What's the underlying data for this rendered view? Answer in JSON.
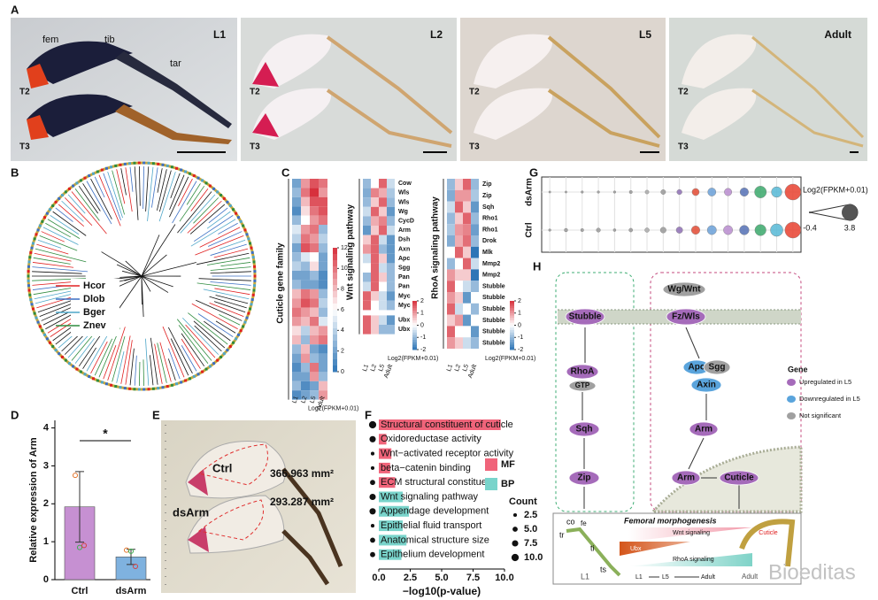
{
  "panel_labels": [
    "A",
    "B",
    "C",
    "D",
    "E",
    "F",
    "G",
    "H"
  ],
  "panel_a": {
    "stages": [
      "L1",
      "L2",
      "L5",
      "Adult"
    ],
    "segments": [
      "fem",
      "tib",
      "tar"
    ],
    "legs": [
      "T2",
      "T3"
    ]
  },
  "panel_b": {
    "legend": [
      {
        "name": "Hcor",
        "color": "#e02020"
      },
      {
        "name": "Dlob",
        "color": "#3b6fc4"
      },
      {
        "name": "Bger",
        "color": "#4fa7c9"
      },
      {
        "name": "Znev",
        "color": "#2e8b3e"
      }
    ]
  },
  "panel_c": {
    "heatmaps": [
      {
        "title": "Cuticle gene family",
        "columns": [
          "L1",
          "L2",
          "L5",
          "Adult"
        ],
        "clim": [
          0,
          12
        ],
        "colorbar_ticks": [
          12,
          10,
          8,
          6,
          4,
          2,
          0
        ],
        "colorbar_label": "Log2(FPKM+0.01)",
        "values": [
          [
            2,
            9,
            11,
            10
          ],
          [
            3,
            10,
            12,
            9
          ],
          [
            2,
            8,
            11,
            11
          ],
          [
            1,
            7,
            10,
            11
          ],
          [
            3,
            6,
            9,
            10
          ],
          [
            5,
            9,
            10,
            3
          ],
          [
            4,
            10,
            9,
            4
          ],
          [
            2,
            11,
            10,
            3
          ],
          [
            3,
            5,
            6,
            2
          ],
          [
            4,
            3,
            7,
            2
          ],
          [
            2,
            2,
            3,
            1
          ],
          [
            3,
            2,
            2,
            1
          ],
          [
            8,
            10,
            9,
            3
          ],
          [
            9,
            11,
            10,
            4
          ],
          [
            10,
            9,
            8,
            3
          ],
          [
            9,
            8,
            10,
            5
          ],
          [
            7,
            4,
            8,
            9
          ],
          [
            8,
            3,
            9,
            10
          ],
          [
            3,
            8,
            2,
            1
          ],
          [
            2,
            9,
            3,
            2
          ],
          [
            1,
            3,
            10,
            2
          ],
          [
            2,
            2,
            9,
            3
          ],
          [
            3,
            1,
            2,
            8
          ],
          [
            1,
            2,
            3,
            9
          ]
        ]
      },
      {
        "title": "Wnt signaling pathway",
        "columns": [
          "L1",
          "L2",
          "L5",
          "Adult"
        ],
        "clim": [
          -2,
          2
        ],
        "colorbar_ticks": [
          2,
          1,
          0,
          -1,
          -2
        ],
        "colorbar_label": "Log2(FPKM+0.01)",
        "highlight": "Arm",
        "genes": [
          "Cow",
          "Wls",
          "Wls",
          "Wg",
          "CycD",
          "Arm",
          "Dsh",
          "Axn",
          "Apc",
          "Sgg",
          "Pan",
          "Pan",
          "Myc",
          "Myc",
          "Ubx",
          "Ubx"
        ],
        "values": [
          [
            -1,
            0,
            1.5,
            -0.5
          ],
          [
            -1.2,
            1.2,
            0.8,
            -0.8
          ],
          [
            -1,
            0.5,
            1.5,
            -1
          ],
          [
            -0.5,
            1.5,
            0.5,
            -1.5
          ],
          [
            -1,
            0.8,
            1.2,
            -1
          ],
          [
            -1.5,
            0.5,
            1.5,
            -0.5
          ],
          [
            0.5,
            1.5,
            -0.5,
            -1.5
          ],
          [
            1,
            1.5,
            -1,
            -1.5
          ],
          [
            -0.5,
            1.5,
            0.5,
            -1.5
          ],
          [
            0,
            1.5,
            -0.5,
            -1
          ],
          [
            -1,
            1.5,
            0.5,
            -1
          ],
          [
            -0.5,
            1.5,
            0,
            -1
          ],
          [
            1.5,
            0.5,
            -0.5,
            -1.5
          ],
          [
            1.5,
            0,
            -0.5,
            -1
          ],
          [
            1.5,
            0.5,
            -0.5,
            -1.5
          ],
          [
            1.5,
            0.5,
            -1,
            -1
          ]
        ]
      },
      {
        "title": "RhoA signaling pathway",
        "columns": [
          "L1",
          "L2",
          "L5",
          "Adult"
        ],
        "clim": [
          -2,
          2
        ],
        "colorbar_ticks": [
          2,
          1,
          0,
          -1,
          -2
        ],
        "colorbar_label": "Log2(FPKM+0.01)",
        "genes": [
          "Zip",
          "Zip",
          "Sqh",
          "Rho1",
          "Rho1",
          "Drok",
          "Mlk",
          "Mmp2",
          "Mmp2",
          "Stubble",
          "Stubble",
          "Stubble",
          "Stubble",
          "Stubble",
          "Stubble"
        ],
        "values": [
          [
            -1,
            0.5,
            1.5,
            -1
          ],
          [
            -1.2,
            1,
            1,
            -0.8
          ],
          [
            -0.5,
            1.5,
            0.5,
            -1.5
          ],
          [
            -1,
            0.5,
            1.5,
            -1
          ],
          [
            -0.8,
            1,
            1.2,
            -1.4
          ],
          [
            -1.2,
            0.8,
            1.4,
            -1
          ],
          [
            0,
            1.5,
            0.5,
            -2
          ],
          [
            -1,
            0,
            1.5,
            -0.5
          ],
          [
            1,
            0.5,
            0.5,
            -2
          ],
          [
            1.5,
            0,
            -0.5,
            -1
          ],
          [
            1,
            0.5,
            -1.5,
            0
          ],
          [
            1.5,
            -0.5,
            0,
            -1
          ],
          [
            0.5,
            1,
            -1.5,
            0
          ],
          [
            1.5,
            0,
            0,
            -1.5
          ],
          [
            1,
            0.5,
            -0.5,
            -1
          ]
        ]
      }
    ]
  },
  "panel_e": {
    "groups": [
      "Ctrl",
      "dsArm"
    ],
    "areas": [
      "366.963 mm²",
      "293.287 mm²"
    ]
  },
  "chart_data": [
    {
      "type": "bar",
      "ylabel": "Relative expression of Arm",
      "categories": [
        "Ctrl",
        "dsArm"
      ],
      "values": [
        1.92,
        0.6
      ],
      "errors": [
        0.93,
        0.2
      ],
      "points": [
        [
          2.75,
          0.85,
          0.9
        ],
        [
          0.78,
          0.75,
          0.35
        ]
      ],
      "colors": [
        "#c690d2",
        "#7fb2df"
      ],
      "annotation": "*",
      "ylim": [
        0,
        4.2
      ],
      "yticks": [
        0,
        1,
        2,
        3,
        4
      ]
    },
    {
      "type": "bar",
      "orientation": "horizontal",
      "xlabel": "−log10(p-value)",
      "categories": [
        "Structural constituent of cuticle",
        "Oxidoreductase activity",
        "Wnt−activated receptor activity",
        "beta−catenin binding",
        "ECM structural constituent",
        "Wnt signaling pathway",
        "Appendage development",
        "Epithelial fluid transport",
        "Anatomical structure size",
        "Epithelium development"
      ],
      "values": [
        9.7,
        0.6,
        1.0,
        0.9,
        1.3,
        1.9,
        2.4,
        1.9,
        2.2,
        1.8
      ],
      "counts": [
        10,
        7.5,
        2.5,
        2.5,
        5,
        7.5,
        7.5,
        2.5,
        5,
        5
      ],
      "groups": [
        "MF",
        "MF",
        "MF",
        "MF",
        "MF",
        "BP",
        "BP",
        "BP",
        "BP",
        "BP"
      ],
      "series": [
        {
          "name": "MF",
          "color": "#f0647a"
        },
        {
          "name": "BP",
          "color": "#79d4cb"
        }
      ],
      "size_legend": {
        "title": "Count",
        "values": [
          2.5,
          {
            "value": 5,
            "label": "5.0"
          },
          7.5,
          {
            "value": 10,
            "label": "10.0"
          }
        ]
      },
      "xlim": [
        0,
        10
      ],
      "xticks": [
        {
          "value": 0,
          "label": "0.0"
        },
        2.5,
        {
          "value": 5,
          "label": "5.0"
        },
        7.5,
        {
          "value": 10,
          "label": "10.0"
        }
      ]
    },
    {
      "type": "dot",
      "categories": [
        null,
        null,
        null,
        null,
        null,
        null,
        null,
        null,
        null,
        null,
        null,
        null,
        null,
        null,
        null,
        null
      ],
      "point_colors": [
        "#999999",
        "#999999",
        "#999999",
        "#999999",
        "#999999",
        "#999999",
        "#aaaaaa",
        "#999999",
        "#8e6fb5",
        "#e34a33",
        "#6aa0d8",
        "#b98ccf",
        "#5470b5",
        "#3aa86b",
        "#56b9d6",
        "#e8412f"
      ],
      "series": [
        {
          "name": "dsArm",
          "values": [
            -0.3,
            -0.3,
            -0.2,
            -0.2,
            -0.2,
            0,
            0.2,
            0.5,
            0.6,
            1.2,
            1.5,
            1.3,
            1.6,
            2.6,
            2.2,
            3.8
          ]
        },
        {
          "name": "Ctrl",
          "values": [
            -0.2,
            0.1,
            0,
            0.3,
            -0.1,
            0.2,
            0.4,
            0.8,
            1,
            1.6,
            1.8,
            1.8,
            1.9,
            2.4,
            2.8,
            3.8
          ]
        }
      ],
      "size_legend": {
        "title": "Log2(FPKM+0.01)",
        "values": [
          -0.4,
          3.8
        ]
      }
    }
  ],
  "panel_h": {
    "nodes": [
      "Wg/Wnt",
      "Stubble",
      "Fz/Wls",
      "RhoA",
      "GTP",
      "Apc",
      "Sgg",
      "Axin",
      "Sqh",
      "Arm",
      "Zip",
      "Arm",
      "Cuticle"
    ],
    "node_colors": [
      "#a0a0a0",
      "#a56bba",
      "#a56bba",
      "#a56bba",
      "#a0a0a0",
      "#5aa4dc",
      "#a0a0a0",
      "#5aa4dc",
      "#a56bba",
      "#a56bba",
      "#a56bba",
      "#a56bba",
      "#a56bba"
    ],
    "legend_title": "Gene",
    "legend": [
      {
        "name": "Upregulated in L5",
        "color": "#a56bba"
      },
      {
        "name": "Downregulated in L5",
        "color": "#5aa4dc"
      },
      {
        "name": "Not significant",
        "color": "#a0a0a0"
      }
    ],
    "inset": [
      "Femoral morphogenesis",
      "Wnt signaling",
      "Ubx",
      "RhoA signaling",
      "co",
      "fe",
      "tr",
      "ti",
      "ts",
      "L1",
      "L1",
      "L5",
      "Adult",
      "Adult",
      "Cuticle"
    ]
  },
  "watermark": "Bioeditas"
}
